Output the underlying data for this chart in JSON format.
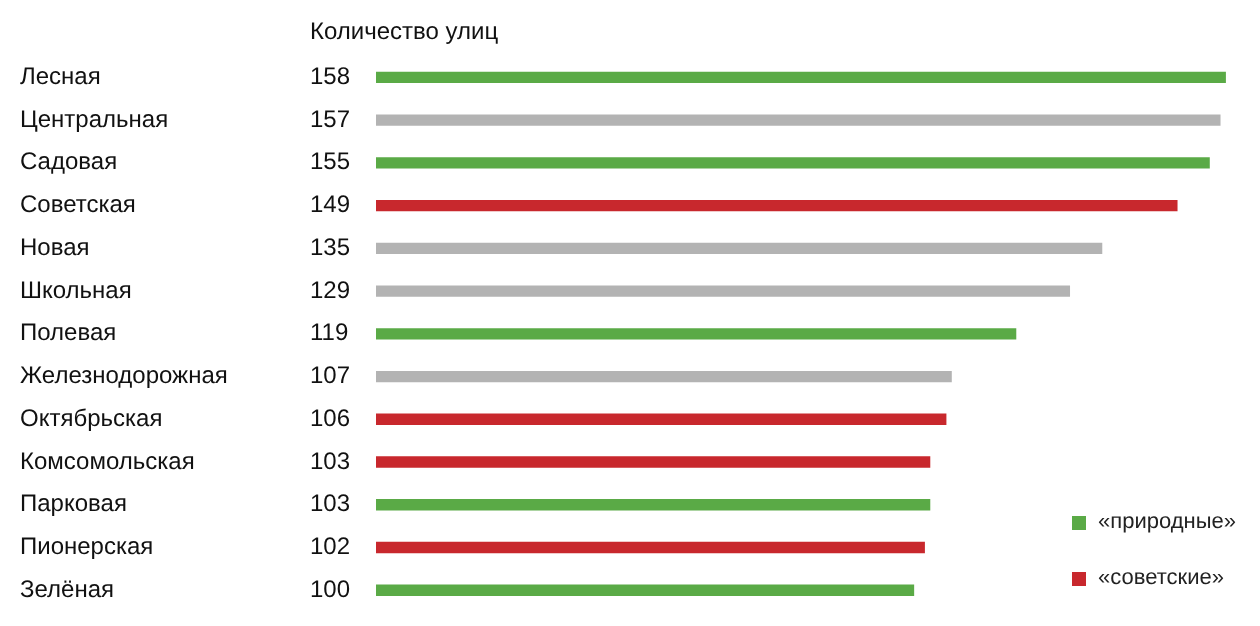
{
  "chart_data": {
    "type": "bar",
    "orientation": "horizontal",
    "stacked": true,
    "title": "Количество улиц",
    "categories": [
      "Лесная",
      "Центральная",
      "Садовая",
      "Советская",
      "Новая",
      "Школьная",
      "Полевая",
      "Железнодорожная",
      "Октябрьская",
      "Комсомольская",
      "Парковая",
      "Пионерская",
      "Зелёная"
    ],
    "series": [
      {
        "name": "«природные»",
        "color": "#5aaa46",
        "values": [
          158,
          null,
          155,
          null,
          null,
          null,
          119,
          null,
          null,
          null,
          103,
          null,
          100
        ]
      },
      {
        "name": "«советские»",
        "color": "#c8282d",
        "values": [
          null,
          null,
          null,
          149,
          null,
          null,
          null,
          null,
          106,
          103,
          null,
          102,
          null
        ]
      },
      {
        "color": "#b3b3b3",
        "values": [
          null,
          157,
          null,
          null,
          135,
          129,
          null,
          107,
          null,
          null,
          null,
          null,
          null
        ]
      }
    ],
    "data_labels": true,
    "grid": false,
    "legend": "bottom right"
  }
}
